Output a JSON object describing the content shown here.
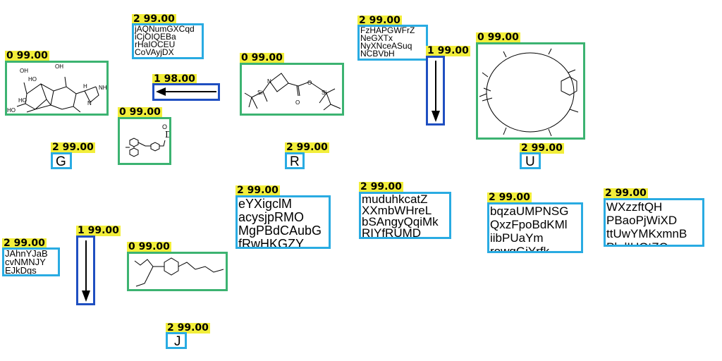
{
  "labels": {
    "mol_a": "0 99.00",
    "txt_a": "2 99.00",
    "arr_a": "1 98.00",
    "mol_b": "0 99.00",
    "letter_g": "2 99.00",
    "mol_c": "0 99.00",
    "letter_r": "2 99.00",
    "txt_b": "2 99.00",
    "arr_b": "1 99.00",
    "mol_d": "0 99.00",
    "letter_u": "2 99.00",
    "txt_c": "2 99.00",
    "arr_c": "1 99.00",
    "mol_e": "0 99.00",
    "letter_j": "2 99.00",
    "txt_d": "2 99.00",
    "txt_e": "2 99.00",
    "txt_f": "2 99.00",
    "txt_g": "2 99.00"
  },
  "texts": {
    "txt_a": "jAQNumGXCqd\niCjOIQEBa\nrHaIOCEU\nCoVAyjDX",
    "txt_b": "FzHAPGWFrZ\nNeGXTx\nNyXNceASuq\nNCBVbH",
    "txt_c": "JAhnYJaB\ncvNMNJY\nEJkDgs",
    "txt_d": "eYXigclM\nacysjpRMO\nMgPBdCAubG\nfRwHKGZY",
    "txt_e": "muduhkcatZ\nXXmbWHreL\nbSAngyQqiMk\nRIYfRUMD",
    "txt_f": "bqzaUMPNSG\nQxzFpoBdKMl\niibPUaYm\nrowqGiYrfk",
    "txt_g": "WXzzftQH\nPBaoPjWiXD\nttUwYMKxmnB\nPkdIUGtZQ"
  },
  "letters": {
    "g": "G",
    "r": "R",
    "u": "U",
    "j": "J"
  },
  "atoms": {
    "oh": "OH",
    "ho": "HO",
    "hn": "H",
    "nh": "NH",
    "n": "N",
    "o": "O",
    "si": "Si",
    "d": "D"
  },
  "colors": {
    "molecule_box": "#3cb371",
    "text_box": "#29abe2",
    "arrow_box": "#1f4fc1",
    "tag": "#f2ee3a"
  }
}
